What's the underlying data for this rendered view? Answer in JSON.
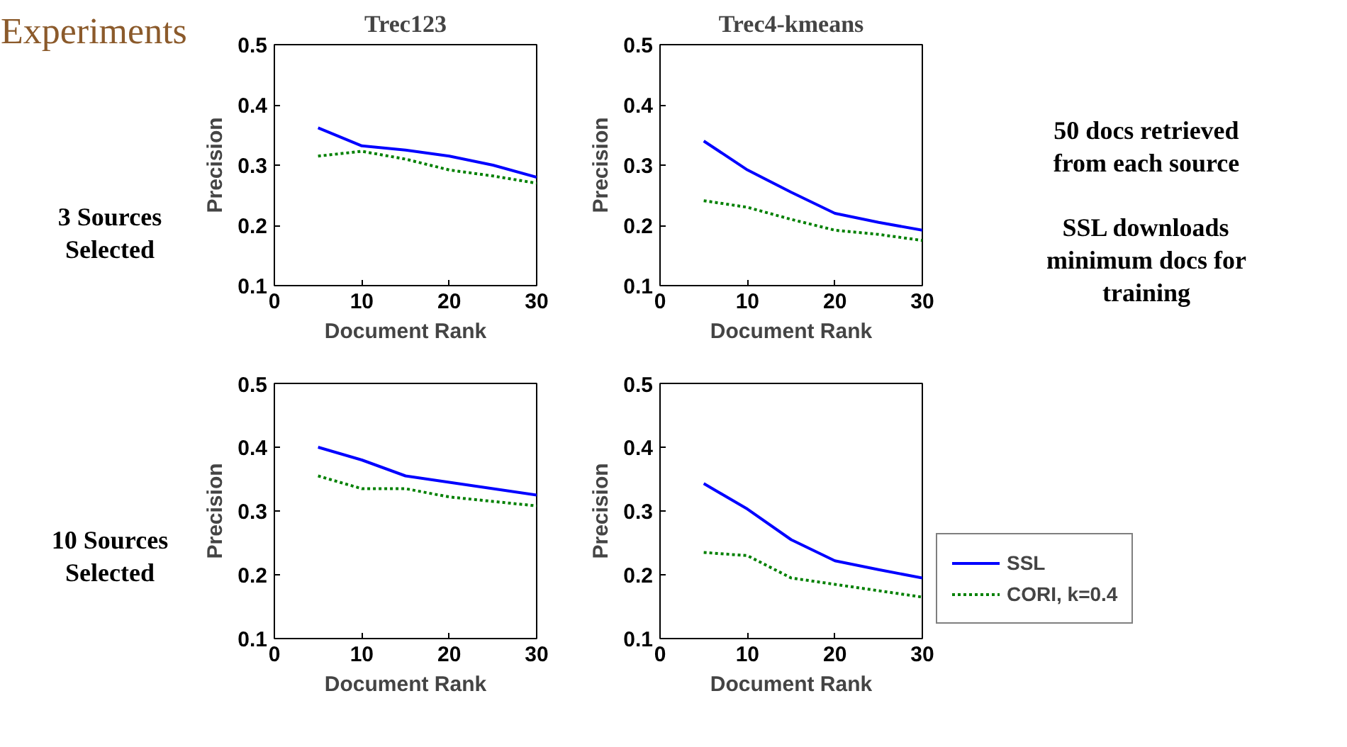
{
  "chart_data": [
    {
      "type": "other",
      "title": "Experiments",
      "annotations": [
        "3 Sources Selected",
        "10 Sources Selected"
      ]
    },
    {
      "type": "line",
      "title": "Trec123",
      "xlabel": "Document Rank",
      "ylabel": "Precision",
      "x": [
        5,
        10,
        15,
        20,
        25,
        30
      ],
      "xlim": [
        0,
        30
      ],
      "ylim": [
        0.1,
        0.5
      ],
      "xticks": [
        0,
        10,
        20,
        30
      ],
      "yticks": [
        0.1,
        0.2,
        0.3,
        0.4,
        0.5
      ],
      "grid": false,
      "legend": false,
      "series": [
        {
          "color": "#0000ff",
          "line_style": "solid",
          "values": [
            0.362,
            0.332,
            0.325,
            0.315,
            0.3,
            0.28
          ]
        },
        {
          "color": "#008000",
          "line_style": "dotted",
          "values": [
            0.315,
            0.323,
            0.31,
            0.292,
            0.282,
            0.27
          ]
        }
      ]
    },
    {
      "type": "line",
      "title": "Trec4-kmeans",
      "xlabel": "Document Rank",
      "ylabel": "Precision",
      "x": [
        5,
        10,
        15,
        20,
        25,
        30
      ],
      "xlim": [
        0,
        30
      ],
      "ylim": [
        0.1,
        0.5
      ],
      "xticks": [
        0,
        10,
        20,
        30
      ],
      "yticks": [
        0.1,
        0.2,
        0.3,
        0.4,
        0.5
      ],
      "grid": false,
      "legend": false,
      "series": [
        {
          "color": "#0000ff",
          "line_style": "solid",
          "values": [
            0.34,
            0.292,
            0.255,
            0.22,
            0.205,
            0.192
          ]
        },
        {
          "color": "#008000",
          "line_style": "dotted",
          "values": [
            0.241,
            0.23,
            0.21,
            0.192,
            0.185,
            0.175
          ]
        }
      ]
    },
    {
      "type": "other",
      "annotations": [
        "50 docs retrieved from each source",
        "SSL downloads minimum docs for training"
      ]
    },
    {
      "type": "line",
      "xlabel": "Document Rank",
      "ylabel": "Precision",
      "x": [
        5,
        10,
        15,
        20,
        25,
        30
      ],
      "xlim": [
        0,
        30
      ],
      "ylim": [
        0.1,
        0.5
      ],
      "xticks": [
        0,
        10,
        20,
        30
      ],
      "yticks": [
        0.1,
        0.2,
        0.3,
        0.4,
        0.5
      ],
      "grid": false,
      "legend": false,
      "series": [
        {
          "color": "#0000ff",
          "line_style": "solid",
          "values": [
            0.4,
            0.38,
            0.355,
            0.345,
            0.335,
            0.325
          ]
        },
        {
          "color": "#008000",
          "line_style": "dotted",
          "values": [
            0.355,
            0.335,
            0.335,
            0.322,
            0.315,
            0.308
          ]
        }
      ]
    },
    {
      "type": "line",
      "xlabel": "Document Rank",
      "ylabel": "Precision",
      "x": [
        5,
        10,
        15,
        20,
        25,
        30
      ],
      "xlim": [
        0,
        30
      ],
      "ylim": [
        0.1,
        0.5
      ],
      "xticks": [
        0,
        10,
        20,
        30
      ],
      "yticks": [
        0.1,
        0.2,
        0.3,
        0.4,
        0.5
      ],
      "grid": false,
      "legend": "right",
      "series": [
        {
          "name": "SSL",
          "color": "#0000ff",
          "line_style": "solid",
          "values": [
            0.343,
            0.303,
            0.255,
            0.222,
            0.208,
            0.195
          ]
        },
        {
          "name": "CORI, k=0.4",
          "color": "#008000",
          "line_style": "dotted",
          "values": [
            0.235,
            0.23,
            0.195,
            0.185,
            0.175,
            0.165
          ]
        }
      ]
    }
  ]
}
